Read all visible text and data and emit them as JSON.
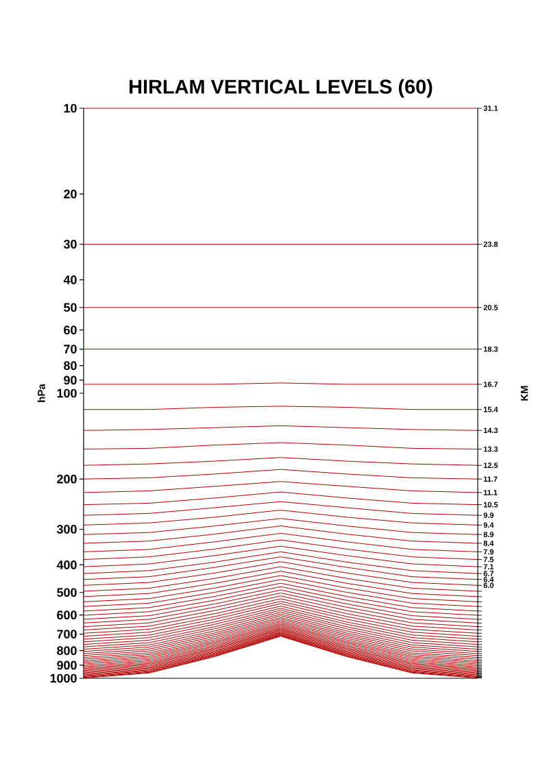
{
  "chart_data": {
    "type": "line",
    "title": "HIRLAM VERTICAL LEVELS (60)",
    "ylabel": "hPa",
    "y2label": "KM",
    "color": "#b00000",
    "categories": [
      null,
      null,
      null,
      null,
      null,
      null,
      null
    ],
    "log": true,
    "tick_labels": "y",
    "annotations": [
      "31.1",
      "23.8",
      "20.5",
      "18.3",
      "16.7",
      "15.4",
      "14.3",
      "13.3",
      "12.5",
      "11.7",
      "11.1",
      "10.5",
      "9.9",
      "9.4",
      "8.9",
      "8.4",
      "7.9",
      "7.5",
      "7.1",
      "6.7",
      "6.4",
      "6.0"
    ],
    "ylim": [
      1000,
      10
    ],
    "yticks": [
      10,
      20,
      30,
      40,
      50,
      60,
      70,
      80,
      90,
      100,
      200,
      300,
      400,
      500,
      600,
      700,
      800,
      900,
      1000
    ],
    "series": [
      {
        "values": [
          10,
          10,
          10,
          10,
          10,
          10,
          10
        ]
      },
      {
        "values": [
          30,
          30,
          30,
          30,
          30,
          30,
          30
        ]
      },
      {
        "values": [
          50,
          50,
          50,
          50,
          50,
          50,
          50
        ]
      },
      {
        "values": [
          70,
          70,
          70,
          70,
          70,
          70,
          70
        ]
      },
      {
        "values": [
          93,
          93,
          93,
          92,
          93,
          93,
          93
        ]
      },
      {
        "values": [
          114,
          114,
          112,
          111,
          112,
          114,
          114
        ]
      },
      {
        "values": [
          135,
          134,
          132,
          130,
          132,
          134,
          135
        ]
      },
      {
        "values": [
          157,
          156,
          152,
          149,
          152,
          156,
          157
        ]
      },
      {
        "values": [
          179,
          177,
          173,
          168,
          173,
          177,
          179
        ]
      },
      {
        "values": [
          200,
          198,
          192,
          185,
          192,
          198,
          200
        ]
      },
      {
        "values": [
          223,
          220,
          212,
          204,
          212,
          220,
          223
        ]
      },
      {
        "values": [
          246,
          243,
          233,
          222,
          233,
          243,
          246
        ]
      },
      {
        "values": [
          268,
          264,
          252,
          240,
          252,
          264,
          268
        ]
      },
      {
        "values": [
          290,
          285,
          272,
          257,
          272,
          285,
          290
        ]
      },
      {
        "values": [
          313,
          308,
          292,
          275,
          292,
          308,
          313
        ]
      },
      {
        "values": [
          336,
          330,
          312,
          292,
          312,
          330,
          336
        ]
      },
      {
        "values": [
          360,
          353,
          332,
          310,
          332,
          353,
          360
        ]
      },
      {
        "values": [
          383,
          375,
          352,
          327,
          352,
          375,
          383
        ]
      },
      {
        "values": [
          406,
          397,
          371,
          344,
          371,
          397,
          406
        ]
      },
      {
        "values": [
          429,
          419,
          391,
          360,
          391,
          419,
          429
        ]
      },
      {
        "values": [
          450,
          440,
          408,
          375,
          408,
          440,
          450
        ]
      },
      {
        "values": [
          472,
          461,
          427,
          390,
          427,
          461,
          472
        ]
      },
      {
        "values": [
          495,
          483,
          446,
          406,
          446,
          483,
          495
        ]
      },
      {
        "values": [
          517,
          504,
          464,
          421,
          464,
          504,
          517
        ]
      },
      {
        "values": [
          539,
          525,
          482,
          436,
          482,
          525,
          539
        ]
      },
      {
        "values": [
          560,
          545,
          499,
          450,
          499,
          545,
          560
        ]
      },
      {
        "values": [
          581,
          565,
          516,
          464,
          516,
          565,
          581
        ]
      },
      {
        "values": [
          601,
          584,
          532,
          477,
          532,
          584,
          601
        ]
      },
      {
        "values": [
          621,
          603,
          548,
          490,
          548,
          603,
          621
        ]
      },
      {
        "values": [
          640,
          621,
          563,
          502,
          563,
          621,
          640
        ]
      },
      {
        "values": [
          659,
          639,
          578,
          514,
          578,
          639,
          659
        ]
      },
      {
        "values": [
          677,
          656,
          593,
          526,
          593,
          656,
          677
        ]
      },
      {
        "values": [
          695,
          673,
          607,
          537,
          607,
          673,
          695
        ]
      },
      {
        "values": [
          712,
          689,
          620,
          547,
          620,
          689,
          712
        ]
      },
      {
        "values": [
          729,
          705,
          634,
          558,
          634,
          705,
          729
        ]
      },
      {
        "values": [
          745,
          720,
          646,
          568,
          646,
          720,
          745
        ]
      },
      {
        "values": [
          761,
          735,
          659,
          577,
          659,
          735,
          761
        ]
      },
      {
        "values": [
          776,
          750,
          670,
          586,
          670,
          750,
          776
        ]
      },
      {
        "values": [
          791,
          764,
          682,
          595,
          682,
          764,
          791
        ]
      },
      {
        "values": [
          805,
          777,
          693,
          603,
          693,
          777,
          805
        ]
      },
      {
        "values": [
          819,
          790,
          703,
          612,
          703,
          790,
          819
        ]
      },
      {
        "values": [
          832,
          802,
          713,
          619,
          713,
          802,
          832
        ]
      },
      {
        "values": [
          845,
          815,
          723,
          627,
          723,
          815,
          845
        ]
      },
      {
        "values": [
          857,
          826,
          733,
          634,
          733,
          826,
          857
        ]
      },
      {
        "values": [
          869,
          837,
          742,
          641,
          742,
          837,
          869
        ]
      },
      {
        "values": [
          880,
          847,
          750,
          647,
          750,
          847,
          880
        ]
      },
      {
        "values": [
          891,
          858,
          758,
          653,
          758,
          858,
          891
        ]
      },
      {
        "values": [
          902,
          868,
          767,
          659,
          767,
          868,
          902
        ]
      },
      {
        "values": [
          912,
          878,
          774,
          665,
          774,
          878,
          912
        ]
      },
      {
        "values": [
          922,
          887,
          782,
          670,
          782,
          887,
          922
        ]
      },
      {
        "values": [
          931,
          895,
          788,
          675,
          788,
          895,
          931
        ]
      },
      {
        "values": [
          940,
          904,
          795,
          680,
          795,
          904,
          940
        ]
      },
      {
        "values": [
          949,
          912,
          802,
          685,
          802,
          912,
          949
        ]
      },
      {
        "values": [
          957,
          920,
          808,
          690,
          808,
          920,
          957
        ]
      },
      {
        "values": [
          965,
          927,
          814,
          694,
          814,
          927,
          965
        ]
      },
      {
        "values": [
          973,
          935,
          820,
          698,
          820,
          935,
          973
        ]
      },
      {
        "values": [
          980,
          941,
          825,
          702,
          825,
          941,
          980
        ]
      },
      {
        "values": [
          987,
          948,
          830,
          706,
          830,
          948,
          987
        ]
      },
      {
        "values": [
          993,
          953,
          835,
          709,
          835,
          953,
          993
        ]
      },
      {
        "values": [
          998,
          958,
          839,
          712,
          839,
          958,
          998
        ]
      }
    ]
  }
}
